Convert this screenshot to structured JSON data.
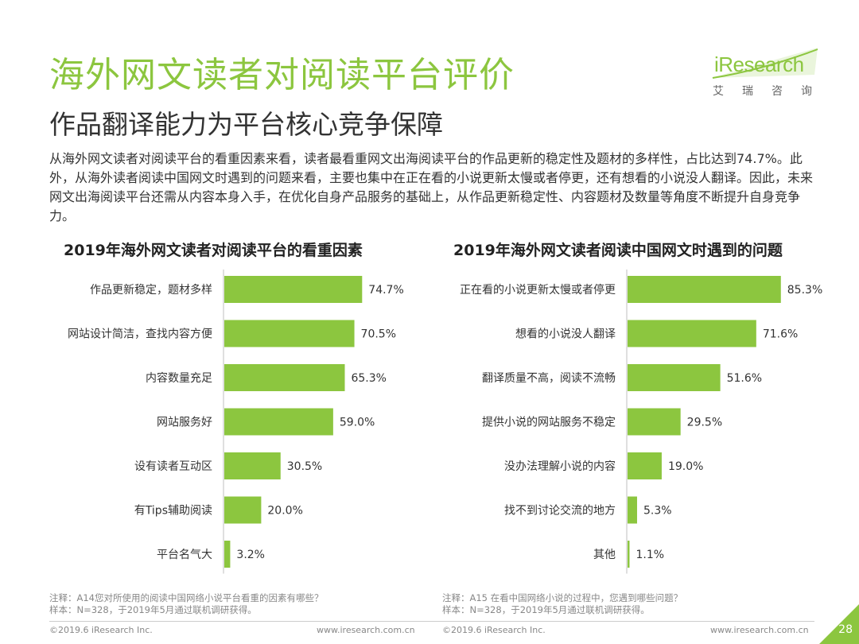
{
  "title": "海外网文读者对阅读平台评价",
  "subtitle": "作品翻译能力为平台核心竞争保障",
  "logo": {
    "brand": "iResearch",
    "cn": "艾瑞咨询"
  },
  "paragraph": "从海外网文读者对阅读平台的看重因素来看，读者最看重网文出海阅读平台的作品更新的稳定性及题材的多样性，占比达到74.7%。此外，从海外读者阅读中国网文时遇到的问题来看，主要也集中在正在看的小说更新太慢或者停更，还有想看的小说没人翻译。因此，未来网文出海阅读平台还需从内容本身入手，在优化自身产品服务的基础上，从作品更新稳定性、内容题材及数量等角度不断提升自身竞争力。",
  "colors": {
    "accent": "#8cc63f",
    "bar": "#8cc63f"
  },
  "chart_data": [
    {
      "type": "bar",
      "orientation": "horizontal",
      "title": "2019年海外网文读者对阅读平台的看重因素",
      "categories": [
        "作品更新稳定，题材多样",
        "网站设计简洁，查找内容方便",
        "内容数量充足",
        "网站服务好",
        "设有读者互动区",
        "有Tips辅助阅读",
        "平台名气大"
      ],
      "values": [
        74.7,
        70.5,
        65.3,
        59.0,
        30.5,
        20.0,
        3.2
      ],
      "labels": [
        "74.7%",
        "70.5%",
        "65.3%",
        "59.0%",
        "30.5%",
        "20.0%",
        "3.2%"
      ],
      "xlim": [
        0,
        100
      ],
      "grid": false,
      "legend": "none"
    },
    {
      "type": "bar",
      "orientation": "horizontal",
      "title": "2019年海外网文读者阅读中国网文时遇到的问题",
      "categories": [
        "正在看的小说更新太慢或者停更",
        "想看的小说没人翻译",
        "翻译质量不高，阅读不流畅",
        "提供小说的网站服务不稳定",
        "没办法理解小说的内容",
        "找不到讨论交流的地方",
        "其他"
      ],
      "values": [
        85.3,
        71.6,
        51.6,
        29.5,
        19.0,
        5.3,
        1.1
      ],
      "labels": [
        "85.3%",
        "71.6%",
        "51.6%",
        "29.5%",
        "19.0%",
        "5.3%",
        "1.1%"
      ],
      "xlim": [
        0,
        100
      ],
      "grid": false,
      "legend": "none"
    }
  ],
  "notes": {
    "left": [
      "注释：A14您对所使用的阅读中国网络小说平台看重的因素有哪些？",
      "样本：N=328，于2019年5月通过联机调研获得。"
    ],
    "right": [
      "注释：A15 在看中国网络小说的过程中，您遇到哪些问题？",
      "样本：N=328，于2019年5月通过联机调研获得。"
    ]
  },
  "footer": {
    "left_copyright": "©2019.6 iResearch Inc.",
    "left_url": "www.iresearch.com.cn",
    "right_copyright": "©2019.6 iResearch Inc.",
    "right_url": "www.iresearch.com.cn",
    "page_number": "28"
  }
}
